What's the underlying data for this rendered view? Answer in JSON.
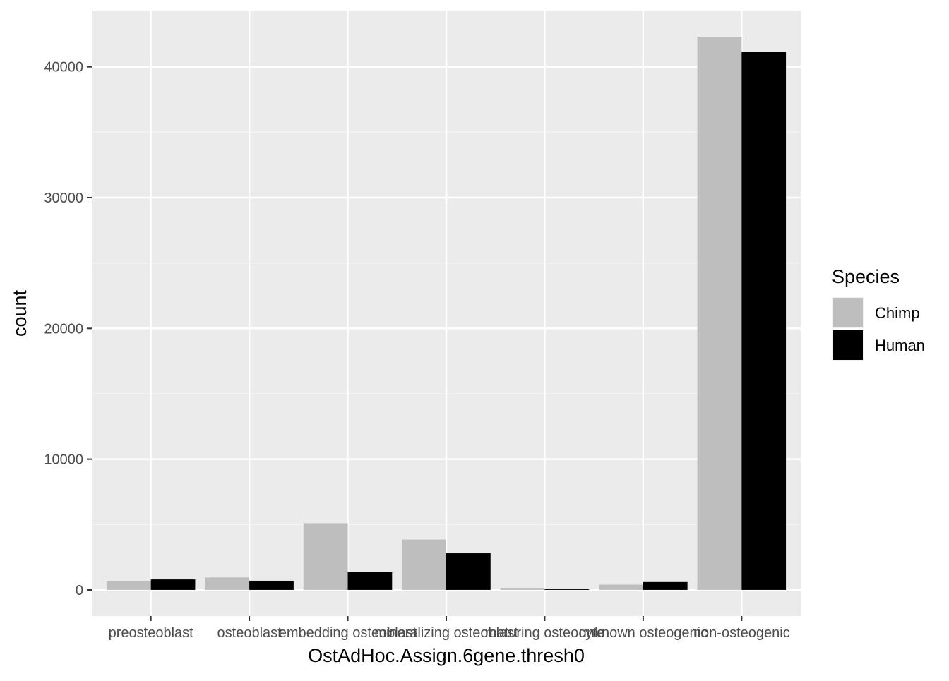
{
  "chart_data": {
    "type": "bar",
    "xlabel": "OstAdHoc.Assign.6gene.thresh0",
    "ylabel": "count",
    "categories": [
      "preosteoblast",
      "osteoblast",
      "embedding osteoblast",
      "mineralizing osteoblast",
      "maturing osteocyte",
      "unknown osteogenic",
      "non-osteogenic"
    ],
    "series": [
      {
        "name": "Chimp",
        "color": "#bebebe",
        "values": [
          700,
          950,
          5100,
          3850,
          150,
          400,
          42300
        ]
      },
      {
        "name": "Human",
        "color": "#000000",
        "values": [
          800,
          700,
          1350,
          2800,
          50,
          600,
          41150
        ]
      }
    ],
    "ylim": [
      -2000,
      44300
    ],
    "y_ticks": [
      0,
      10000,
      20000,
      30000,
      40000
    ],
    "grid": true,
    "panel_background": "#ebebeb",
    "legend": {
      "title": "Species",
      "position": "right"
    }
  }
}
